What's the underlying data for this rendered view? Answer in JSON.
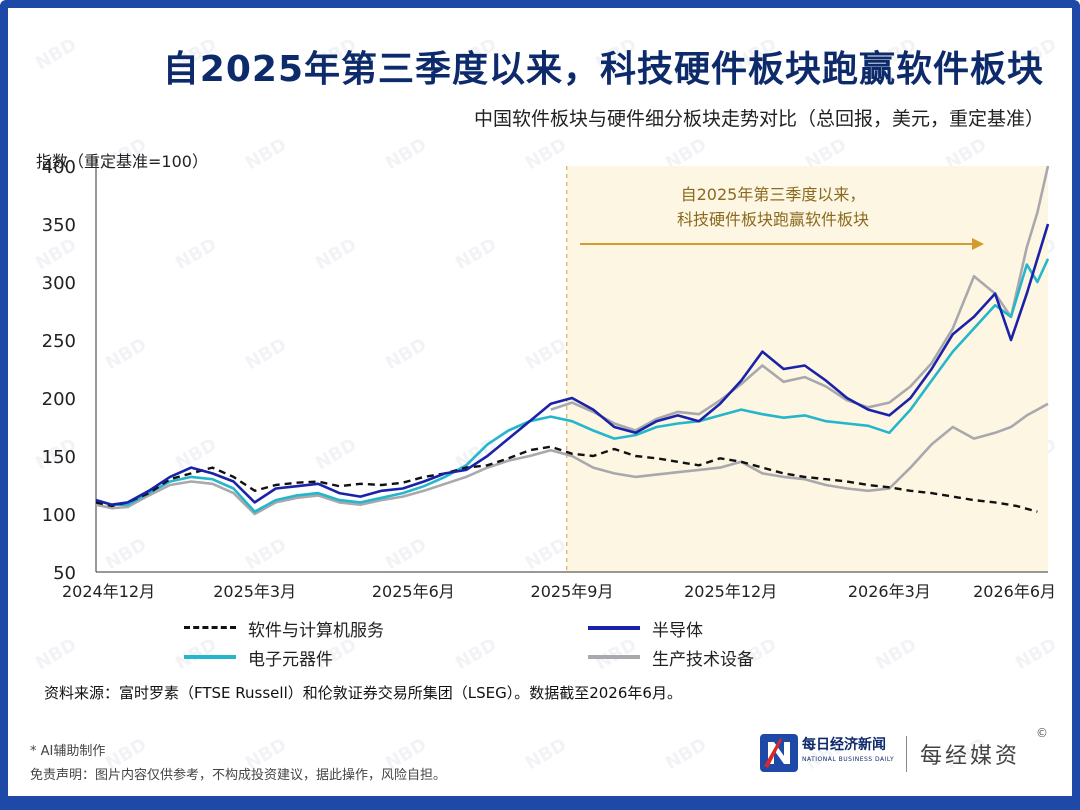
{
  "header": {
    "title": "自2025年第三季度以来，科技硬件板块跑赢软件板块",
    "subtitle": "中国软件板块与硬件细分板块走势对比（总回报，美元，重定基准）"
  },
  "watermark": {
    "text": "NBD"
  },
  "chart_data": {
    "type": "line",
    "ylabel": "指数（重定基准=100）",
    "ylim": [
      50,
      400
    ],
    "yticks": [
      50,
      100,
      150,
      200,
      250,
      300,
      350,
      400
    ],
    "xlim": [
      0,
      18
    ],
    "xticks": [
      {
        "pos": 0,
        "label": "2024年12月"
      },
      {
        "pos": 3,
        "label": "2025年3月"
      },
      {
        "pos": 6,
        "label": "2025年6月"
      },
      {
        "pos": 9,
        "label": "2025年9月"
      },
      {
        "pos": 12,
        "label": "2025年12月"
      },
      {
        "pos": 15,
        "label": "2026年3月"
      },
      {
        "pos": 18,
        "label": "2026年6月"
      }
    ],
    "highlight": {
      "x_start": 8.9,
      "x_end": 18.0,
      "color": "#fdf6e3"
    },
    "annotation": {
      "lines": [
        "自2025年第三季度以来，",
        "科技硬件板块跑赢软件板块"
      ],
      "color": "#8a6a1f"
    },
    "grid": false,
    "series": [
      {
        "name": "软件与计算机服务",
        "color": "#111111",
        "style": "dashed",
        "x": [
          0,
          0.3,
          0.6,
          1,
          1.4,
          1.8,
          2.2,
          2.6,
          3,
          3.4,
          3.8,
          4.2,
          4.6,
          5,
          5.4,
          5.8,
          6.2,
          6.6,
          7,
          7.4,
          7.8,
          8.2,
          8.6,
          9,
          9.4,
          9.8,
          10.2,
          10.6,
          11,
          11.4,
          11.8,
          12.2,
          12.6,
          13,
          13.4,
          13.8,
          14.2,
          14.6,
          15,
          15.4,
          15.8,
          16.2,
          16.6,
          17,
          17.4,
          17.8
        ],
        "y": [
          110,
          107,
          110,
          118,
          130,
          135,
          140,
          132,
          120,
          125,
          127,
          128,
          124,
          126,
          125,
          127,
          132,
          135,
          140,
          142,
          148,
          155,
          158,
          152,
          150,
          156,
          150,
          148,
          145,
          142,
          148,
          145,
          140,
          135,
          132,
          130,
          128,
          125,
          123,
          120,
          118,
          115,
          112,
          110,
          107,
          102
        ]
      },
      {
        "name": "半导体",
        "color": "#1a22a8",
        "style": "solid",
        "x": [
          0,
          0.3,
          0.6,
          1,
          1.4,
          1.8,
          2.2,
          2.6,
          3,
          3.4,
          3.8,
          4.2,
          4.6,
          5,
          5.4,
          5.8,
          6.2,
          6.6,
          7,
          7.4,
          7.8,
          8.2,
          8.6,
          9,
          9.4,
          9.8,
          10.2,
          10.6,
          11,
          11.4,
          11.8,
          12.2,
          12.6,
          13,
          13.4,
          13.8,
          14.2,
          14.6,
          15,
          15.4,
          15.8,
          16.2,
          16.6,
          17,
          17.3,
          17.6,
          17.8,
          18
        ],
        "y": [
          112,
          108,
          110,
          120,
          132,
          140,
          135,
          128,
          110,
          122,
          124,
          126,
          118,
          115,
          120,
          122,
          128,
          135,
          138,
          150,
          165,
          180,
          195,
          200,
          190,
          175,
          170,
          180,
          185,
          180,
          195,
          215,
          240,
          225,
          228,
          215,
          200,
          190,
          185,
          200,
          225,
          255,
          270,
          290,
          250,
          290,
          320,
          350
        ]
      },
      {
        "name": "电子元器件",
        "color": "#25b6cc",
        "style": "solid",
        "x": [
          0,
          0.3,
          0.6,
          1,
          1.4,
          1.8,
          2.2,
          2.6,
          3,
          3.4,
          3.8,
          4.2,
          4.6,
          5,
          5.4,
          5.8,
          6.2,
          6.6,
          7,
          7.4,
          7.8,
          8.2,
          8.6,
          9,
          9.4,
          9.8,
          10.2,
          10.6,
          11,
          11.4,
          11.8,
          12.2,
          12.6,
          13,
          13.4,
          13.8,
          14.2,
          14.6,
          15,
          15.4,
          15.8,
          16.2,
          16.6,
          17,
          17.3,
          17.6,
          17.8,
          18
        ],
        "y": [
          112,
          108,
          108,
          118,
          128,
          132,
          130,
          122,
          102,
          112,
          116,
          118,
          112,
          110,
          114,
          118,
          124,
          132,
          142,
          160,
          172,
          180,
          184,
          180,
          172,
          165,
          168,
          175,
          178,
          180,
          185,
          190,
          186,
          183,
          185,
          180,
          178,
          176,
          170,
          190,
          215,
          240,
          260,
          280,
          270,
          315,
          300,
          320
        ]
      },
      {
        "name": "生产技术设备",
        "color": "#a9a9ad",
        "style": "solid",
        "x": [
          0,
          0.3,
          0.6,
          1,
          1.4,
          1.8,
          2.2,
          2.6,
          3,
          3.4,
          3.8,
          4.2,
          4.6,
          5,
          5.4,
          5.8,
          6.2,
          6.6,
          7,
          7.4,
          7.8,
          8.2,
          8.6,
          9,
          9.4,
          9.8,
          10.2,
          10.6,
          11,
          11.4,
          11.8,
          12.2,
          12.6,
          13,
          13.4,
          13.8,
          14.2,
          14.6,
          15,
          15.4,
          15.8,
          16.2,
          16.6,
          17,
          17.3,
          17.6,
          17.8,
          18
        ],
        "y": [
          108,
          105,
          106,
          116,
          125,
          128,
          126,
          118,
          100,
          110,
          114,
          116,
          110,
          108,
          112,
          115,
          120,
          126,
          132,
          140,
          146,
          150,
          155,
          150,
          140,
          135,
          132,
          134,
          136,
          138,
          140,
          145,
          135,
          132,
          130,
          125,
          122,
          120,
          122,
          140,
          160,
          175,
          165,
          170,
          175,
          185,
          190,
          195
        ]
      },
      {
        "name": "生产技术设备_overlay",
        "color": "#a9a9ad",
        "style": "solid",
        "hidden_label": true,
        "x": [
          8.6,
          9,
          9.4,
          9.8,
          10.2,
          10.6,
          11,
          11.4,
          11.8,
          12.2,
          12.6,
          13,
          13.4,
          13.8,
          14.2,
          14.6,
          15,
          15.4,
          15.8,
          16.2,
          16.6,
          17,
          17.3,
          17.6,
          17.8,
          18
        ],
        "y": [
          190,
          196,
          188,
          178,
          172,
          182,
          188,
          186,
          198,
          212,
          228,
          214,
          218,
          210,
          198,
          192,
          196,
          210,
          230,
          260,
          305,
          290,
          270,
          330,
          360,
          400
        ]
      }
    ]
  },
  "legend": {
    "items": [
      {
        "label": "软件与计算机服务",
        "color": "#111111",
        "style": "dashed"
      },
      {
        "label": "半导体",
        "color": "#1a22a8",
        "style": "solid"
      },
      {
        "label": "电子元器件",
        "color": "#25b6cc",
        "style": "solid"
      },
      {
        "label": "生产技术设备",
        "color": "#a9a9ad",
        "style": "solid"
      }
    ]
  },
  "footer": {
    "source": "资料来源：富时罗素（FTSE Russell）和伦敦证券交易所集团（LSEG）。数据截至2026年6月。",
    "ai_note": "* AI辅助制作",
    "disclaimer": "免责声明：图片内容仅供参考，不构成投资建议，据此操作，风险自担。"
  },
  "brand": {
    "logo_text": "每日经济新闻",
    "logo_sub": "NATIONAL BUSINESS DAILY",
    "name": "每经媒资",
    "copyright": "©"
  }
}
